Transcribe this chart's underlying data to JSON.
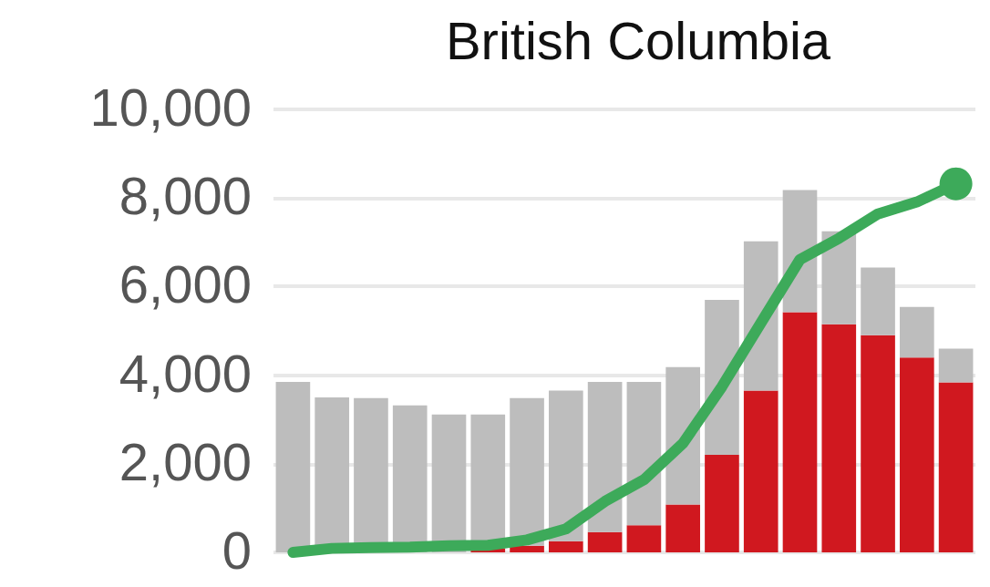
{
  "chart_data": {
    "type": "bar",
    "title": "British Columbia",
    "stacked": true,
    "categories": [
      null,
      null,
      null,
      null,
      null,
      null,
      null,
      null,
      null,
      null,
      null,
      null,
      null,
      null,
      null,
      null,
      null,
      null
    ],
    "series": [
      {
        "color": "#d0181f",
        "values": [
          0,
          0,
          0,
          0,
          0,
          80,
          150,
          250,
          460,
          610,
          1080,
          2200,
          3650,
          5420,
          5150,
          4900,
          4400,
          3840
        ]
      },
      {
        "color": "#bdbdbd",
        "values": [
          3850,
          3500,
          3480,
          3320,
          3110,
          3030,
          3330,
          3400,
          3390,
          3240,
          3100,
          3500,
          3370,
          2760,
          2100,
          1530,
          1140,
          760
        ]
      },
      {
        "type": "line",
        "color": "#3daa5a",
        "values": [
          0,
          90,
          110,
          120,
          150,
          160,
          280,
          530,
          1150,
          1640,
          2460,
          3740,
          5180,
          6610,
          7090,
          7640,
          7910,
          8320
        ]
      }
    ],
    "ylim": [
      0,
      10000
    ],
    "yticks": [
      0,
      {
        "value": 2000,
        "label": "2,000"
      },
      {
        "value": 4000,
        "label": "4,000"
      },
      {
        "value": 6000,
        "label": "6,000"
      },
      {
        "value": 8000,
        "label": "8,000"
      },
      {
        "value": 10000,
        "label": "10,000"
      }
    ],
    "grid": "y"
  }
}
